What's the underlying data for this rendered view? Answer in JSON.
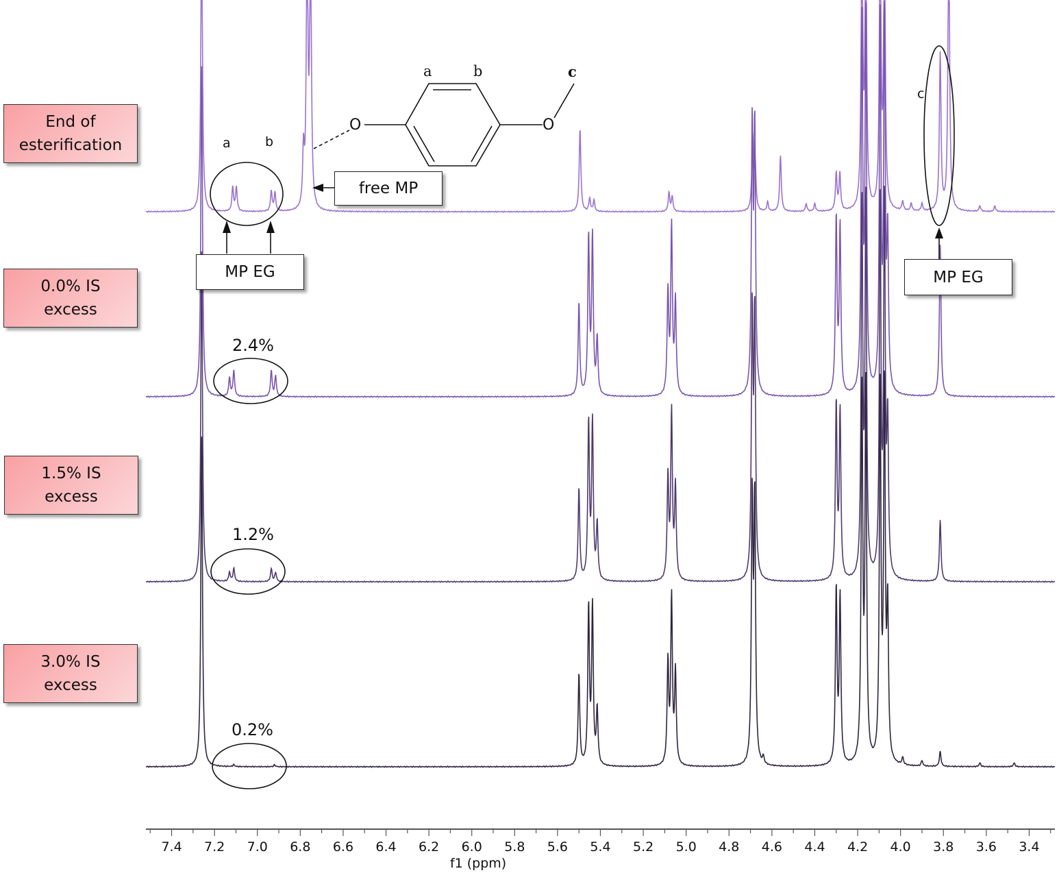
{
  "chart_data": {
    "type": "line",
    "xlabel": "f1 (ppm)",
    "xlim": [
      7.52,
      3.28
    ],
    "x_reversed": true,
    "xticks": [
      "7.4",
      "7.2",
      "7.0",
      "6.8",
      "6.6",
      "6.4",
      "6.2",
      "6.0",
      "5.8",
      "5.6",
      "5.4",
      "5.2",
      "5.0",
      "4.8",
      "4.6",
      "4.4",
      "4.2",
      "4.0",
      "3.8",
      "3.6",
      "3.4"
    ],
    "grid": false,
    "series": [
      {
        "name": "End of\nesterification",
        "color": "#9b72cf",
        "peaks": [
          [
            7.26,
            1.6
          ],
          [
            7.115,
            0.13
          ],
          [
            7.098,
            0.13
          ],
          [
            6.935,
            0.11
          ],
          [
            6.918,
            0.1
          ],
          [
            6.785,
            0.3
          ],
          [
            6.768,
            1.5
          ],
          [
            6.752,
            1.5
          ],
          [
            5.495,
            0.45
          ],
          [
            5.45,
            0.07
          ],
          [
            5.43,
            0.06
          ],
          [
            5.08,
            0.1
          ],
          [
            5.065,
            0.08
          ],
          [
            4.69,
            0.4
          ],
          [
            4.678,
            0.25
          ],
          [
            4.62,
            0.05
          ],
          [
            4.56,
            0.3
          ],
          [
            4.44,
            0.04
          ],
          [
            4.4,
            0.04
          ],
          [
            4.3,
            0.2
          ],
          [
            4.283,
            0.2
          ],
          [
            4.18,
            1.6
          ],
          [
            4.162,
            1.6
          ],
          [
            4.095,
            1.6
          ],
          [
            4.075,
            1.6
          ],
          [
            3.99,
            0.05
          ],
          [
            3.95,
            0.04
          ],
          [
            3.9,
            0.04
          ],
          [
            3.815,
            0.85
          ],
          [
            3.775,
            1.6
          ],
          [
            3.63,
            0.03
          ],
          [
            3.56,
            0.03
          ]
        ]
      },
      {
        "name": "0.0% IS\nexcess",
        "color": "#7a55ad",
        "peaks": [
          [
            7.26,
            1.8
          ],
          [
            7.13,
            0.1
          ],
          [
            7.11,
            0.14
          ],
          [
            6.935,
            0.14
          ],
          [
            6.915,
            0.11
          ],
          [
            5.5,
            0.5
          ],
          [
            5.455,
            0.85
          ],
          [
            5.437,
            0.85
          ],
          [
            5.415,
            0.3
          ],
          [
            5.085,
            0.55
          ],
          [
            5.068,
            0.9
          ],
          [
            5.05,
            0.5
          ],
          [
            4.692,
            1.4
          ],
          [
            4.68,
            1.4
          ],
          [
            4.3,
            0.95
          ],
          [
            4.282,
            0.9
          ],
          [
            4.18,
            2
          ],
          [
            4.162,
            2
          ],
          [
            4.095,
            2
          ],
          [
            4.075,
            2
          ],
          [
            4.06,
            0.8
          ],
          [
            3.815,
            0.82
          ]
        ]
      },
      {
        "name": "1.5% IS\nexcess",
        "color": "#4e3a6e",
        "peaks": [
          [
            7.26,
            1.8
          ],
          [
            7.13,
            0.05
          ],
          [
            7.11,
            0.07
          ],
          [
            6.935,
            0.07
          ],
          [
            6.915,
            0.05
          ],
          [
            5.5,
            0.5
          ],
          [
            5.455,
            0.85
          ],
          [
            5.437,
            0.85
          ],
          [
            5.415,
            0.3
          ],
          [
            5.085,
            0.55
          ],
          [
            5.068,
            0.9
          ],
          [
            5.05,
            0.5
          ],
          [
            4.692,
            1.4
          ],
          [
            4.68,
            1.4
          ],
          [
            4.3,
            0.95
          ],
          [
            4.282,
            0.9
          ],
          [
            4.18,
            2
          ],
          [
            4.162,
            2
          ],
          [
            4.095,
            2
          ],
          [
            4.075,
            2
          ],
          [
            4.06,
            0.8
          ],
          [
            3.815,
            0.33
          ]
        ]
      },
      {
        "name": "3.0% IS\nexcess",
        "color": "#2e2540",
        "peaks": [
          [
            7.26,
            1.8
          ],
          [
            7.11,
            0.01
          ],
          [
            6.92,
            0.01
          ],
          [
            5.5,
            0.5
          ],
          [
            5.455,
            0.85
          ],
          [
            5.437,
            0.85
          ],
          [
            5.415,
            0.3
          ],
          [
            5.085,
            0.55
          ],
          [
            5.068,
            0.9
          ],
          [
            5.05,
            0.5
          ],
          [
            4.692,
            1.4
          ],
          [
            4.68,
            1.4
          ],
          [
            4.64,
            0.04
          ],
          [
            4.3,
            0.95
          ],
          [
            4.282,
            0.9
          ],
          [
            4.18,
            2
          ],
          [
            4.162,
            2
          ],
          [
            4.095,
            2
          ],
          [
            4.075,
            2
          ],
          [
            4.06,
            0.8
          ],
          [
            3.99,
            0.04
          ],
          [
            3.9,
            0.03
          ],
          [
            3.815,
            0.08
          ],
          [
            3.63,
            0.02
          ],
          [
            3.47,
            0.02
          ]
        ]
      }
    ],
    "annotations": {
      "mp_eg_percentages": [
        "2.4%",
        "1.2%",
        "0.2%"
      ],
      "free_mp": "free MP",
      "mp_eg_left": "MP EG",
      "mp_eg_right": "MP EG",
      "peak_a": "a",
      "peak_b": "b",
      "peak_c": "c",
      "structure_labels": {
        "a": "a",
        "b": "b",
        "c": "c",
        "o1": "O",
        "o2": "O"
      }
    }
  }
}
